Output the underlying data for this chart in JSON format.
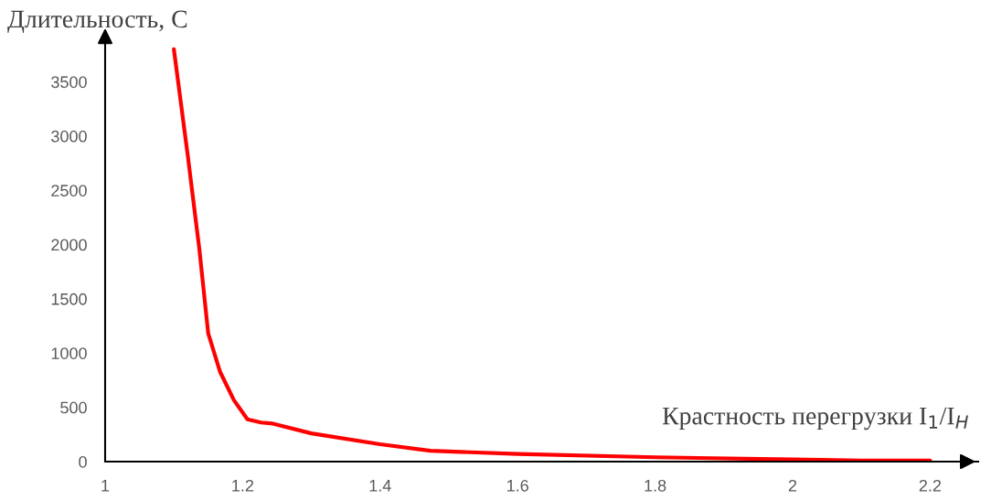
{
  "chart_data": {
    "type": "line",
    "xlabel": "Крастность перегрузки I$_{1}$/I$_{H}$",
    "ylabel": "Длительность, С",
    "series": [
      {
        "color": "#ff0000",
        "x": [
          1.1,
          1.12,
          1.137,
          1.15,
          1.167,
          1.187,
          1.207,
          1.227,
          1.244,
          1.3,
          1.4,
          1.473,
          1.6,
          1.8,
          2.0,
          2.1,
          2.2
        ],
        "values": [
          3800,
          2830,
          1960,
          1180,
          830,
          570,
          390,
          360,
          350,
          260,
          160,
          100,
          70,
          40,
          20,
          10,
          10
        ]
      }
    ],
    "xlim": [
      1,
      2.27
    ],
    "ylim": [
      0,
      3900
    ],
    "xticks": [
      1,
      1.2,
      1.4,
      1.6,
      1.8,
      2,
      2.2
    ],
    "yticks": [
      0,
      500,
      1000,
      1500,
      2000,
      2500,
      3000,
      3500
    ],
    "grid": false,
    "legend": false,
    "marker": "none",
    "line_style": "solid"
  }
}
